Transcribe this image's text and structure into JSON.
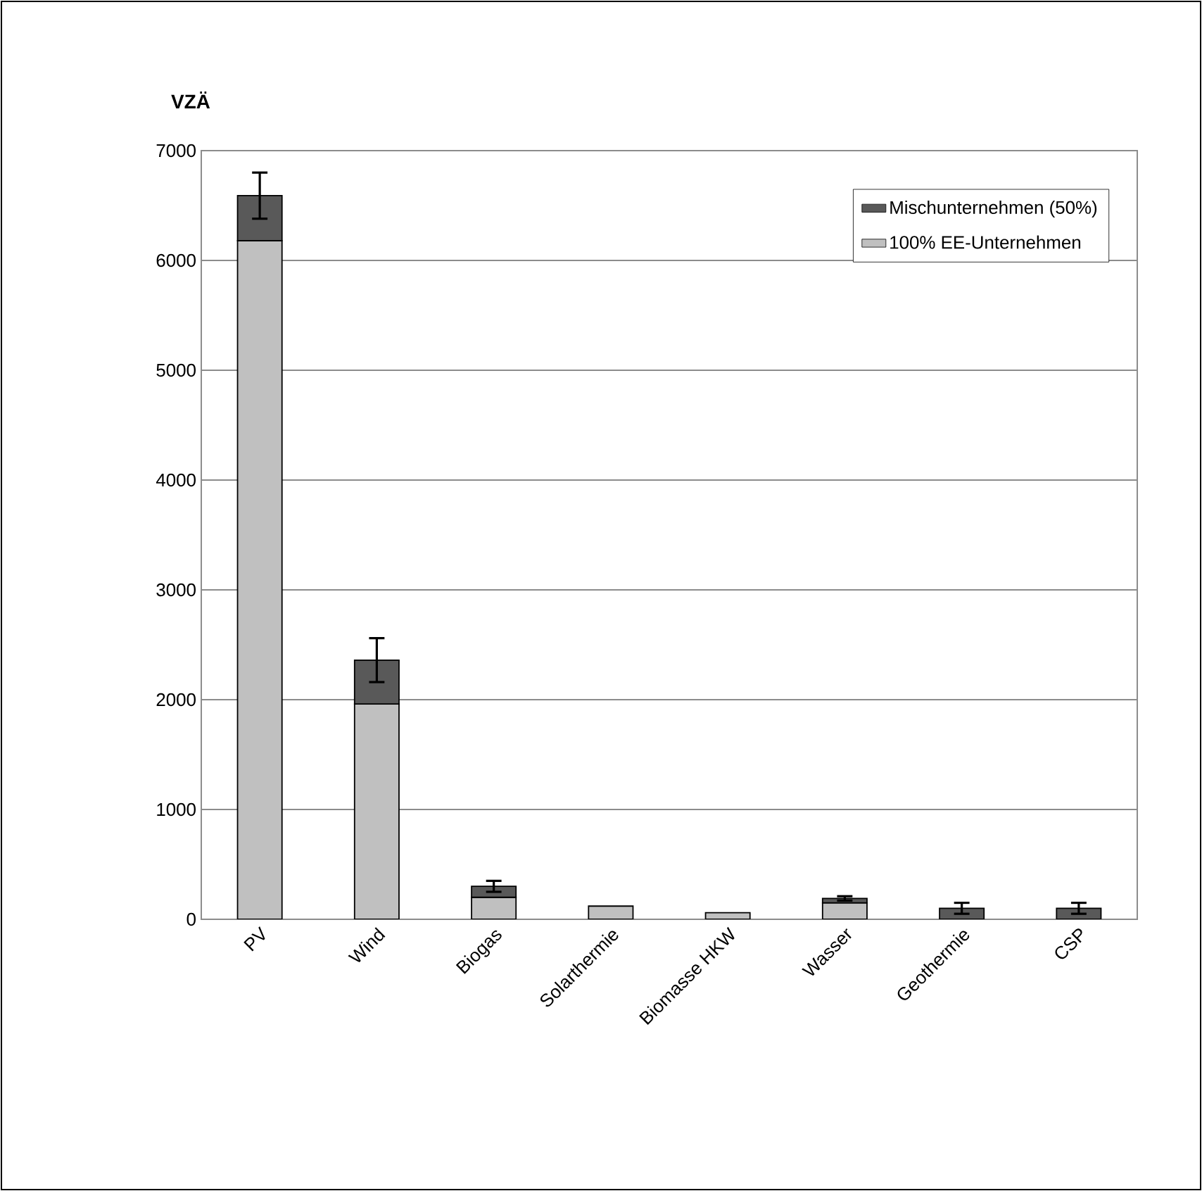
{
  "chart_data": {
    "type": "bar",
    "stacked": true,
    "ylabel": "VZÄ",
    "categories": [
      "PV",
      "Wind",
      "Biogas",
      "Solarthermie",
      "Biomasse HKW",
      "Wasser",
      "Geothermie",
      "CSP"
    ],
    "series": [
      {
        "name": "100% EE-Unternehmen",
        "color": "#c0c0c0",
        "values": [
          6180,
          1960,
          200,
          120,
          60,
          150,
          null,
          null
        ]
      },
      {
        "name": "Mischunternehmen (50%)",
        "color": "#595959",
        "values": [
          410,
          400,
          100,
          null,
          null,
          40,
          100,
          100
        ],
        "errors": [
          210,
          200,
          50,
          null,
          null,
          20,
          50,
          50
        ]
      }
    ],
    "ylim": [
      0,
      7000
    ],
    "yticks": [
      0,
      1000,
      2000,
      3000,
      4000,
      5000,
      6000,
      7000
    ],
    "grid": "y",
    "legend": "top right"
  }
}
